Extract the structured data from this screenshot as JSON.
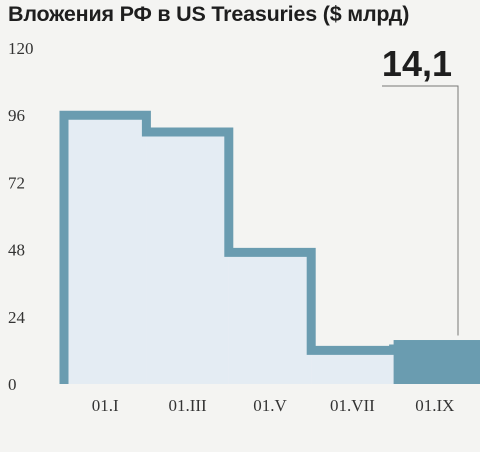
{
  "title": "Вложения РФ в US Treasuries ($ млрд)",
  "colors": {
    "fill": "#e4ecf3",
    "stroke": "#6a9cb0",
    "last_bar": "#6a9cb0",
    "text": "#1e1e1e",
    "background": "#f4f4f2"
  },
  "chart_data": {
    "type": "area",
    "title": "Вложения РФ в US Treasuries ($ млрд)",
    "xlabel": "",
    "ylabel": "",
    "ylim": [
      0,
      120
    ],
    "yticks": [
      0,
      24,
      48,
      72,
      96,
      120
    ],
    "ytick_labels": [
      "0",
      "24",
      "48",
      "72",
      "96",
      "120"
    ],
    "categories": [
      "01.I",
      "01.III",
      "01.V",
      "01.VII",
      "01.IX"
    ],
    "series": [
      {
        "step_values": [
          96,
          90,
          47,
          12,
          14.1
        ]
      }
    ],
    "callout": {
      "label": "14,1",
      "value": 14.1
    },
    "grid": false,
    "legend": "none"
  }
}
